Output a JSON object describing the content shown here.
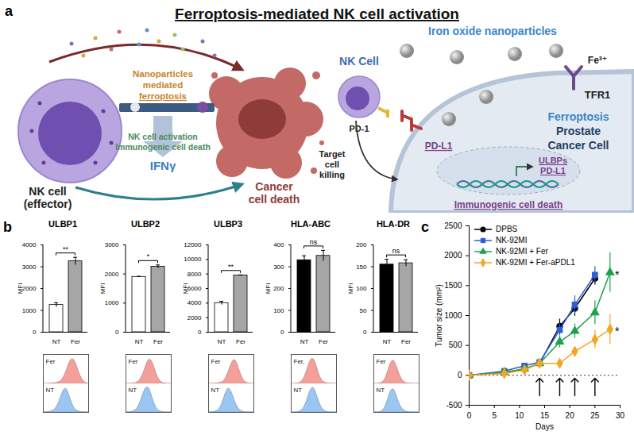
{
  "panel_labels": [
    "a",
    "b",
    "c"
  ],
  "diagram": {
    "title": "Ferroptosis-mediated NK cell activation",
    "top_text": [
      "Nanoparticles",
      "mediated",
      "ferroptosis"
    ],
    "middle_text": [
      "NK cell activation",
      "Immunogenic cell death"
    ],
    "cytokine": "IFNγ",
    "effector_label": [
      "NK cell",
      "(effector)"
    ],
    "target_label": [
      "Cancer",
      "cell death"
    ],
    "nk_cell": "NK Cell",
    "nanoparticles": "Iron oxide nanoparticles",
    "ion": "Fe³⁺",
    "receptor": "TFR1",
    "checkpoint": "PD-1",
    "ligand": "PD-L1",
    "target_cell": [
      "Ferroptosis",
      "Prostate",
      "Cancer Cell"
    ],
    "killing": [
      "Target",
      "cell",
      "killing"
    ],
    "genes": [
      "ULBPs",
      "PD-L1"
    ],
    "outcome": "Immunogenic cell death"
  },
  "chart_data": [
    {
      "type": "bar",
      "title": "ULBP1",
      "y_label": "MFI",
      "categories": [
        "NT",
        "Fer"
      ],
      "values": [
        1250,
        3250
      ],
      "errors": [
        100,
        180
      ],
      "colors": [
        "#ffffff",
        "#a6a6a6"
      ],
      "ylim": [
        0,
        4000
      ],
      "yticks": [
        0,
        1000,
        2000,
        3000,
        4000
      ],
      "significance": "**",
      "histograms": {
        "x": [
          0,
          1,
          2,
          3,
          4,
          5,
          6,
          7,
          8,
          9,
          10,
          11,
          12
        ],
        "xlim": [
          0,
          12
        ],
        "ylim": [
          0,
          100
        ],
        "tick_labels": false,
        "series": [
          {
            "name": "Fer",
            "color": "#f4a09a",
            "values": [
              0,
              0,
              1,
              2,
              5,
              15,
              45,
              90,
              100,
              60,
              20,
              4,
              0
            ]
          },
          {
            "name": "NT",
            "color": "#9cc6f2",
            "values": [
              0,
              1,
              3,
              10,
              35,
              80,
              100,
              55,
              15,
              4,
              1,
              0,
              0
            ]
          }
        ]
      }
    },
    {
      "type": "bar",
      "title": "ULBP2",
      "y_label": "MFI",
      "categories": [
        "NT",
        "Fer"
      ],
      "values": [
        1900,
        2250
      ],
      "errors": [
        20,
        60
      ],
      "colors": [
        "#ffffff",
        "#a6a6a6"
      ],
      "ylim": [
        0,
        3000
      ],
      "yticks": [
        0,
        1000,
        2000,
        3000
      ],
      "significance": "*",
      "histograms": {
        "x": [
          0,
          1,
          2,
          3,
          4,
          5,
          6,
          7,
          8,
          9,
          10,
          11,
          12
        ],
        "xlim": [
          0,
          12
        ],
        "ylim": [
          0,
          100
        ],
        "tick_labels": false,
        "series": [
          {
            "name": "Fer",
            "color": "#f4a09a",
            "values": [
              0,
              0,
              1,
              5,
              20,
              60,
              100,
              85,
              35,
              8,
              2,
              0,
              0
            ]
          },
          {
            "name": "NT",
            "color": "#9cc6f2",
            "values": [
              0,
              1,
              4,
              15,
              50,
              95,
              100,
              50,
              12,
              3,
              0,
              0,
              0
            ]
          }
        ]
      }
    },
    {
      "type": "bar",
      "title": "ULBP3",
      "y_label": "MFI",
      "categories": [
        "NT",
        "Fer"
      ],
      "values": [
        4000,
        7800
      ],
      "errors": [
        250,
        80
      ],
      "colors": [
        "#ffffff",
        "#a6a6a6"
      ],
      "ylim": [
        0,
        12000
      ],
      "yticks": [
        0,
        2000,
        4000,
        6000,
        8000,
        10000,
        12000
      ],
      "significance": "**",
      "histograms": {
        "x": [
          0,
          1,
          2,
          3,
          4,
          5,
          6,
          7,
          8,
          9,
          10,
          11,
          12
        ],
        "xlim": [
          0,
          12
        ],
        "ylim": [
          0,
          100
        ],
        "tick_labels": false,
        "series": [
          {
            "name": "Fer",
            "color": "#f4a09a",
            "values": [
              0,
              0,
              1,
              3,
              10,
              35,
              80,
              100,
              55,
              15,
              3,
              0,
              0
            ]
          },
          {
            "name": "NT",
            "color": "#9cc6f2",
            "values": [
              0,
              1,
              4,
              15,
              55,
              100,
              80,
              35,
              10,
              2,
              0,
              0,
              0
            ]
          }
        ]
      }
    },
    {
      "type": "bar",
      "title": "HLA-ABC",
      "y_label": "MFI",
      "categories": [
        "NT",
        "Fer"
      ],
      "values": [
        330,
        350
      ],
      "errors": [
        20,
        25
      ],
      "colors": [
        "#000000",
        "#a6a6a6"
      ],
      "ylim": [
        0,
        400
      ],
      "yticks": [
        0,
        100,
        200,
        300,
        400
      ],
      "significance": "ns",
      "histograms": {
        "x": [
          0,
          1,
          2,
          3,
          4,
          5,
          6,
          7,
          8,
          9,
          10,
          11,
          12
        ],
        "xlim": [
          0,
          12
        ],
        "ylim": [
          0,
          100
        ],
        "tick_labels": false,
        "series": [
          {
            "name": "Fer,",
            "color": "#f4a09a",
            "values": [
              0,
              0,
              2,
              12,
              45,
              95,
              100,
              45,
              12,
              3,
              0,
              0,
              0
            ]
          },
          {
            "name": "NT",
            "color": "#9cc6f2",
            "values": [
              0,
              0,
              2,
              10,
              40,
              90,
              100,
              50,
              15,
              3,
              0,
              0,
              0
            ]
          }
        ]
      }
    },
    {
      "type": "bar",
      "title": "HLA-DR",
      "y_label": "MFI",
      "categories": [
        "NT",
        "Fer"
      ],
      "values": [
        155,
        158
      ],
      "errors": [
        12,
        8
      ],
      "colors": [
        "#000000",
        "#a6a6a6"
      ],
      "ylim": [
        0,
        200
      ],
      "yticks": [
        0,
        50,
        100,
        150,
        200
      ],
      "significance": "ns",
      "histograms": {
        "x": [
          0,
          1,
          2,
          3,
          4,
          5,
          6,
          7,
          8,
          9,
          10,
          11,
          12
        ],
        "xlim": [
          0,
          12
        ],
        "ylim": [
          0,
          100
        ],
        "tick_labels": false,
        "series": [
          {
            "name": "Fer",
            "color": "#f4a09a",
            "values": [
              0,
              0,
              3,
              18,
              65,
              100,
              65,
              22,
              5,
              1,
              0,
              0,
              0
            ]
          },
          {
            "name": "NT",
            "color": "#9cc6f2",
            "values": [
              0,
              0,
              3,
              20,
              70,
              100,
              60,
              20,
              5,
              1,
              0,
              0,
              0
            ]
          }
        ]
      }
    },
    {
      "type": "line",
      "x_label": "Days",
      "y_label": "Tumor size (mm²)",
      "x": [
        0,
        7,
        11,
        14,
        18,
        21,
        25,
        28
      ],
      "series": [
        {
          "name": "DPBS",
          "color": "#000000",
          "marker": "circle",
          "values": [
            0,
            40,
            100,
            200,
            820,
            1120,
            1620,
            null
          ],
          "errors": [
            0,
            10,
            20,
            30,
            120,
            130,
            110,
            null
          ]
        },
        {
          "name": "NK-92MI",
          "color": "#2e5fd6",
          "marker": "square",
          "values": [
            0,
            70,
            160,
            220,
            760,
            1180,
            1680,
            null
          ],
          "errors": [
            0,
            15,
            25,
            30,
            100,
            150,
            140,
            null
          ]
        },
        {
          "name": "NK-92MI + Fer",
          "color": "#1aa34a",
          "marker": "triangle",
          "values": [
            0,
            50,
            110,
            200,
            560,
            740,
            1050,
            1720
          ],
          "errors": [
            0,
            10,
            20,
            30,
            100,
            120,
            200,
            330
          ]
        },
        {
          "name": "NK-92MI + Fer-aPDL1",
          "color": "#f5a623",
          "marker": "diamond",
          "values": [
            0,
            30,
            90,
            200,
            200,
            400,
            600,
            770
          ],
          "errors": [
            0,
            10,
            15,
            20,
            30,
            60,
            150,
            250
          ]
        }
      ],
      "xlim": [
        0,
        30
      ],
      "xticks": [
        0,
        5,
        10,
        15,
        20,
        25,
        30
      ],
      "ylim": [
        -500,
        2500
      ],
      "yticks": [
        -500,
        0,
        500,
        1000,
        1500,
        2000,
        2500
      ],
      "legend": "top-left",
      "reference_y": 0,
      "treatment_days": [
        14,
        18,
        21,
        25
      ],
      "annotations": [
        {
          "series": "NK-92MI + Fer",
          "text": "*"
        },
        {
          "series": "NK-92MI + Fer-aPDL1",
          "text": "*"
        }
      ]
    }
  ]
}
